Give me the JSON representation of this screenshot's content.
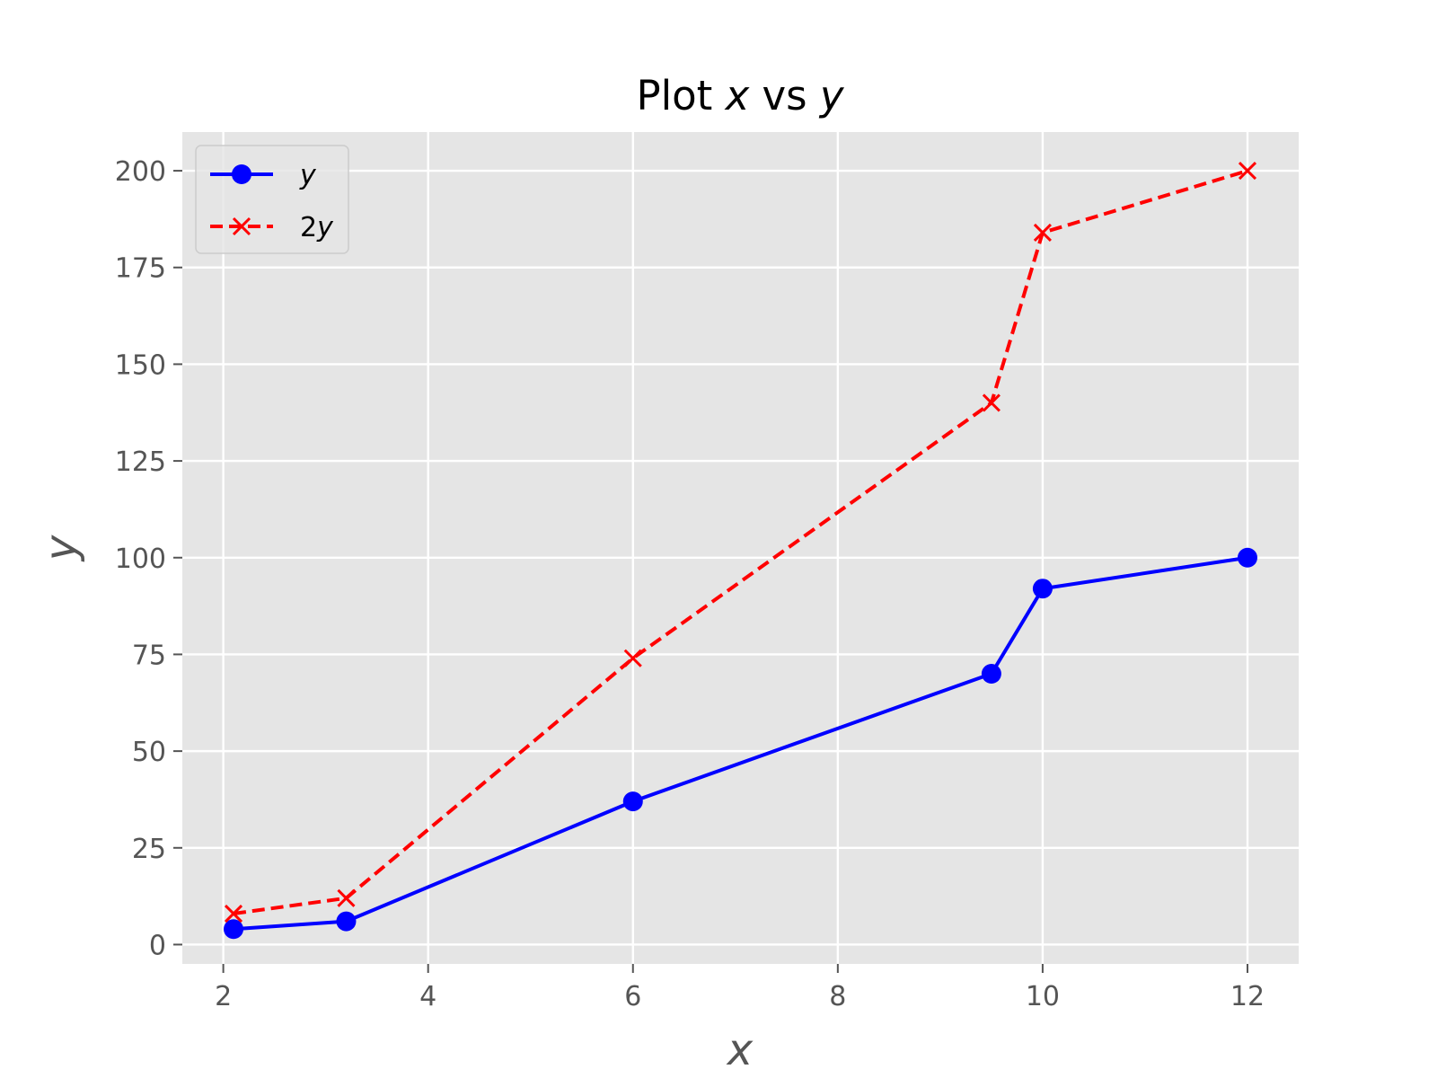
{
  "chart_data": {
    "type": "line",
    "title": "Plot x vs y",
    "title_parts": [
      {
        "text": "Plot ",
        "italic": false
      },
      {
        "text": "x",
        "italic": true
      },
      {
        "text": " vs ",
        "italic": false
      },
      {
        "text": "y",
        "italic": true
      }
    ],
    "xlabel": "x",
    "ylabel": "y",
    "xlim": [
      1.6,
      12.5
    ],
    "ylim": [
      -5,
      210
    ],
    "xticks": [
      2,
      4,
      6,
      8,
      10,
      12
    ],
    "yticks": [
      0,
      25,
      50,
      75,
      100,
      125,
      150,
      175,
      200
    ],
    "grid": true,
    "legend_position": "top-left",
    "series": [
      {
        "name": "y",
        "legend_parts": [
          {
            "text": "y",
            "italic": true
          }
        ],
        "color": "#0000ff",
        "linestyle": "solid",
        "marker": "circle",
        "x": [
          2.1,
          3.2,
          6,
          9.5,
          10,
          12
        ],
        "y": [
          4,
          6,
          37,
          70,
          92,
          100
        ]
      },
      {
        "name": "2y",
        "legend_parts": [
          {
            "text": "2",
            "italic": false
          },
          {
            "text": "y",
            "italic": true
          }
        ],
        "color": "#ff0000",
        "linestyle": "dashed",
        "marker": "x",
        "x": [
          2.1,
          3.2,
          6,
          9.5,
          10,
          12
        ],
        "y": [
          8,
          12,
          74,
          140,
          184,
          200
        ]
      }
    ]
  },
  "colors": {
    "plot_background": "#e5e5e5",
    "grid": "#ffffff",
    "tick_label": "#555555",
    "title": "#000000"
  }
}
